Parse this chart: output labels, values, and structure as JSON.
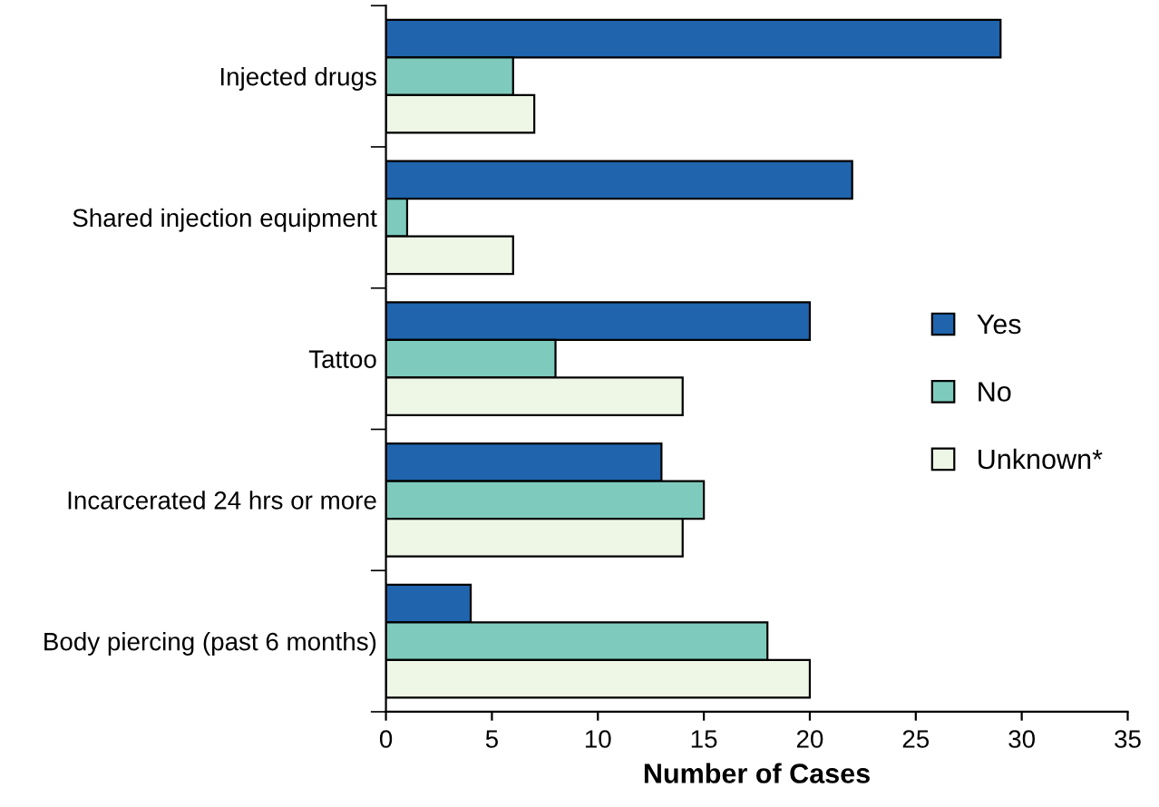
{
  "chart_data": {
    "type": "bar",
    "orientation": "horizontal",
    "xlabel": "Number of Cases",
    "categories": [
      "Injected drugs",
      "Shared injection equipment",
      "Tattoo",
      "Incarcerated 24 hrs or more",
      "Body piercing (past 6 months)"
    ],
    "series": [
      {
        "name": "Yes",
        "color": "#1f64ad",
        "values": [
          29,
          22,
          20,
          13,
          4
        ]
      },
      {
        "name": "No",
        "color": "#7ecbbe",
        "values": [
          6,
          1,
          8,
          15,
          18
        ]
      },
      {
        "name": "Unknown*",
        "color": "#eef6e6",
        "values": [
          7,
          6,
          14,
          14,
          20
        ]
      }
    ],
    "xlim": [
      0,
      35
    ],
    "xticks": [
      0,
      5,
      10,
      15,
      20,
      25,
      30,
      35
    ],
    "grid": false,
    "legend": "right"
  }
}
